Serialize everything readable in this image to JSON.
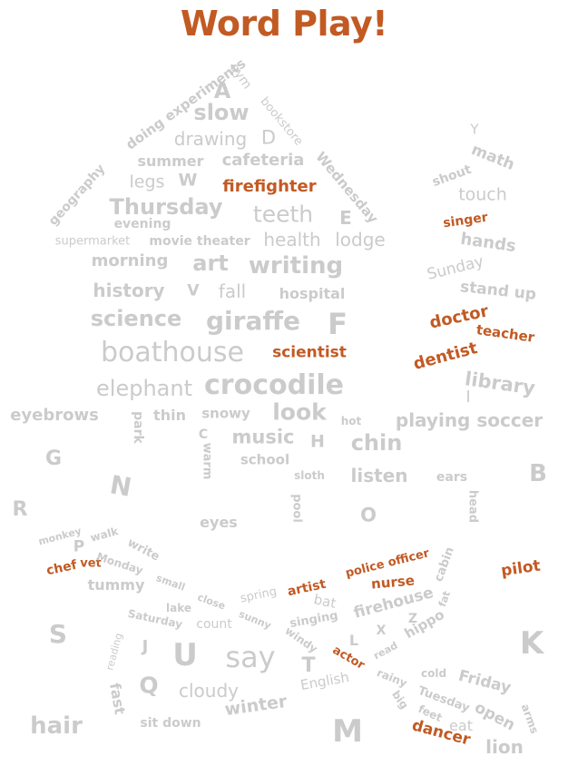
{
  "title": "Word Play!",
  "colors": {
    "gray": "#cbcbcb",
    "orange": "#c25a23"
  },
  "words": [
    {
      "t": "A",
      "c": "gray"
    },
    {
      "t": "gym",
      "c": "gray"
    },
    {
      "t": "doing experiments",
      "c": "gray"
    },
    {
      "t": "slow",
      "c": "gray"
    },
    {
      "t": "bookstore",
      "c": "gray"
    },
    {
      "t": "drawing",
      "c": "gray"
    },
    {
      "t": "D",
      "c": "gray"
    },
    {
      "t": "geography",
      "c": "gray"
    },
    {
      "t": "summer",
      "c": "gray"
    },
    {
      "t": "cafeteria",
      "c": "gray"
    },
    {
      "t": "Wednesday",
      "c": "gray"
    },
    {
      "t": "legs",
      "c": "gray"
    },
    {
      "t": "W",
      "c": "gray"
    },
    {
      "t": "firefighter",
      "c": "orange"
    },
    {
      "t": "Thursday",
      "c": "gray"
    },
    {
      "t": "teeth",
      "c": "gray"
    },
    {
      "t": "E",
      "c": "gray"
    },
    {
      "t": "evening",
      "c": "gray"
    },
    {
      "t": "supermarket",
      "c": "gray"
    },
    {
      "t": "movie theater",
      "c": "gray"
    },
    {
      "t": "health",
      "c": "gray"
    },
    {
      "t": "lodge",
      "c": "gray"
    },
    {
      "t": "morning",
      "c": "gray"
    },
    {
      "t": "art",
      "c": "gray"
    },
    {
      "t": "writing",
      "c": "gray"
    },
    {
      "t": "history",
      "c": "gray"
    },
    {
      "t": "V",
      "c": "gray"
    },
    {
      "t": "fall",
      "c": "gray"
    },
    {
      "t": "hospital",
      "c": "gray"
    },
    {
      "t": "science",
      "c": "gray"
    },
    {
      "t": "giraffe",
      "c": "gray"
    },
    {
      "t": "F",
      "c": "gray"
    },
    {
      "t": "boathouse",
      "c": "gray"
    },
    {
      "t": "scientist",
      "c": "orange"
    },
    {
      "t": "elephant",
      "c": "gray"
    },
    {
      "t": "crocodile",
      "c": "gray"
    },
    {
      "t": "Y",
      "c": "gray"
    },
    {
      "t": "math",
      "c": "gray"
    },
    {
      "t": "shout",
      "c": "gray"
    },
    {
      "t": "touch",
      "c": "gray"
    },
    {
      "t": "singer",
      "c": "orange"
    },
    {
      "t": "hands",
      "c": "gray"
    },
    {
      "t": "Sunday",
      "c": "gray"
    },
    {
      "t": "stand up",
      "c": "gray"
    },
    {
      "t": "doctor",
      "c": "orange"
    },
    {
      "t": "teacher",
      "c": "orange"
    },
    {
      "t": "dentist",
      "c": "orange"
    },
    {
      "t": "library",
      "c": "gray"
    },
    {
      "t": "I",
      "c": "gray"
    },
    {
      "t": "eyebrows",
      "c": "gray"
    },
    {
      "t": "park",
      "c": "gray"
    },
    {
      "t": "thin",
      "c": "gray"
    },
    {
      "t": "snowy",
      "c": "gray"
    },
    {
      "t": "look",
      "c": "gray"
    },
    {
      "t": "hot",
      "c": "gray"
    },
    {
      "t": "playing soccer",
      "c": "gray"
    },
    {
      "t": "C",
      "c": "gray"
    },
    {
      "t": "warm",
      "c": "gray"
    },
    {
      "t": "music",
      "c": "gray"
    },
    {
      "t": "H",
      "c": "gray"
    },
    {
      "t": "chin",
      "c": "gray"
    },
    {
      "t": "G",
      "c": "gray"
    },
    {
      "t": "school",
      "c": "gray"
    },
    {
      "t": "sloth",
      "c": "gray"
    },
    {
      "t": "listen",
      "c": "gray"
    },
    {
      "t": "ears",
      "c": "gray"
    },
    {
      "t": "B",
      "c": "gray"
    },
    {
      "t": "N",
      "c": "gray"
    },
    {
      "t": "head",
      "c": "gray"
    },
    {
      "t": "pool",
      "c": "gray"
    },
    {
      "t": "R",
      "c": "gray"
    },
    {
      "t": "eyes",
      "c": "gray"
    },
    {
      "t": "O",
      "c": "gray"
    },
    {
      "t": "monkey",
      "c": "gray"
    },
    {
      "t": "walk",
      "c": "gray"
    },
    {
      "t": "write",
      "c": "gray"
    },
    {
      "t": "P",
      "c": "gray"
    },
    {
      "t": "vet",
      "c": "orange"
    },
    {
      "t": "Monday",
      "c": "gray"
    },
    {
      "t": "chef",
      "c": "orange"
    },
    {
      "t": "tummy",
      "c": "gray"
    },
    {
      "t": "small",
      "c": "gray"
    },
    {
      "t": "police officer",
      "c": "orange"
    },
    {
      "t": "cabin",
      "c": "gray"
    },
    {
      "t": "pilot",
      "c": "orange"
    },
    {
      "t": "artist",
      "c": "orange"
    },
    {
      "t": "nurse",
      "c": "orange"
    },
    {
      "t": "spring",
      "c": "gray"
    },
    {
      "t": "close",
      "c": "gray"
    },
    {
      "t": "lake",
      "c": "gray"
    },
    {
      "t": "bat",
      "c": "gray"
    },
    {
      "t": "firehouse",
      "c": "gray"
    },
    {
      "t": "fat",
      "c": "gray"
    },
    {
      "t": "Saturday",
      "c": "gray"
    },
    {
      "t": "count",
      "c": "gray"
    },
    {
      "t": "sunny",
      "c": "gray"
    },
    {
      "t": "singing",
      "c": "gray"
    },
    {
      "t": "Z",
      "c": "gray"
    },
    {
      "t": "hippo",
      "c": "gray"
    },
    {
      "t": "S",
      "c": "gray"
    },
    {
      "t": "X",
      "c": "gray"
    },
    {
      "t": "L",
      "c": "gray"
    },
    {
      "t": "windy",
      "c": "gray"
    },
    {
      "t": "K",
      "c": "gray"
    },
    {
      "t": "reading",
      "c": "gray"
    },
    {
      "t": "J",
      "c": "gray"
    },
    {
      "t": "U",
      "c": "gray"
    },
    {
      "t": "say",
      "c": "gray"
    },
    {
      "t": "T",
      "c": "gray"
    },
    {
      "t": "actor",
      "c": "orange"
    },
    {
      "t": "read",
      "c": "gray"
    },
    {
      "t": "Q",
      "c": "gray"
    },
    {
      "t": "cloudy",
      "c": "gray"
    },
    {
      "t": "English",
      "c": "gray"
    },
    {
      "t": "rainy",
      "c": "gray"
    },
    {
      "t": "cold",
      "c": "gray"
    },
    {
      "t": "Friday",
      "c": "gray"
    },
    {
      "t": "fast",
      "c": "gray"
    },
    {
      "t": "Tuesday",
      "c": "gray"
    },
    {
      "t": "winter",
      "c": "gray"
    },
    {
      "t": "big",
      "c": "gray"
    },
    {
      "t": "open",
      "c": "gray"
    },
    {
      "t": "arms",
      "c": "gray"
    },
    {
      "t": "hair",
      "c": "gray"
    },
    {
      "t": "sit down",
      "c": "gray"
    },
    {
      "t": "feet",
      "c": "gray"
    },
    {
      "t": "eat",
      "c": "gray"
    },
    {
      "t": "M",
      "c": "gray"
    },
    {
      "t": "dancer",
      "c": "orange"
    },
    {
      "t": "lion",
      "c": "gray"
    }
  ]
}
